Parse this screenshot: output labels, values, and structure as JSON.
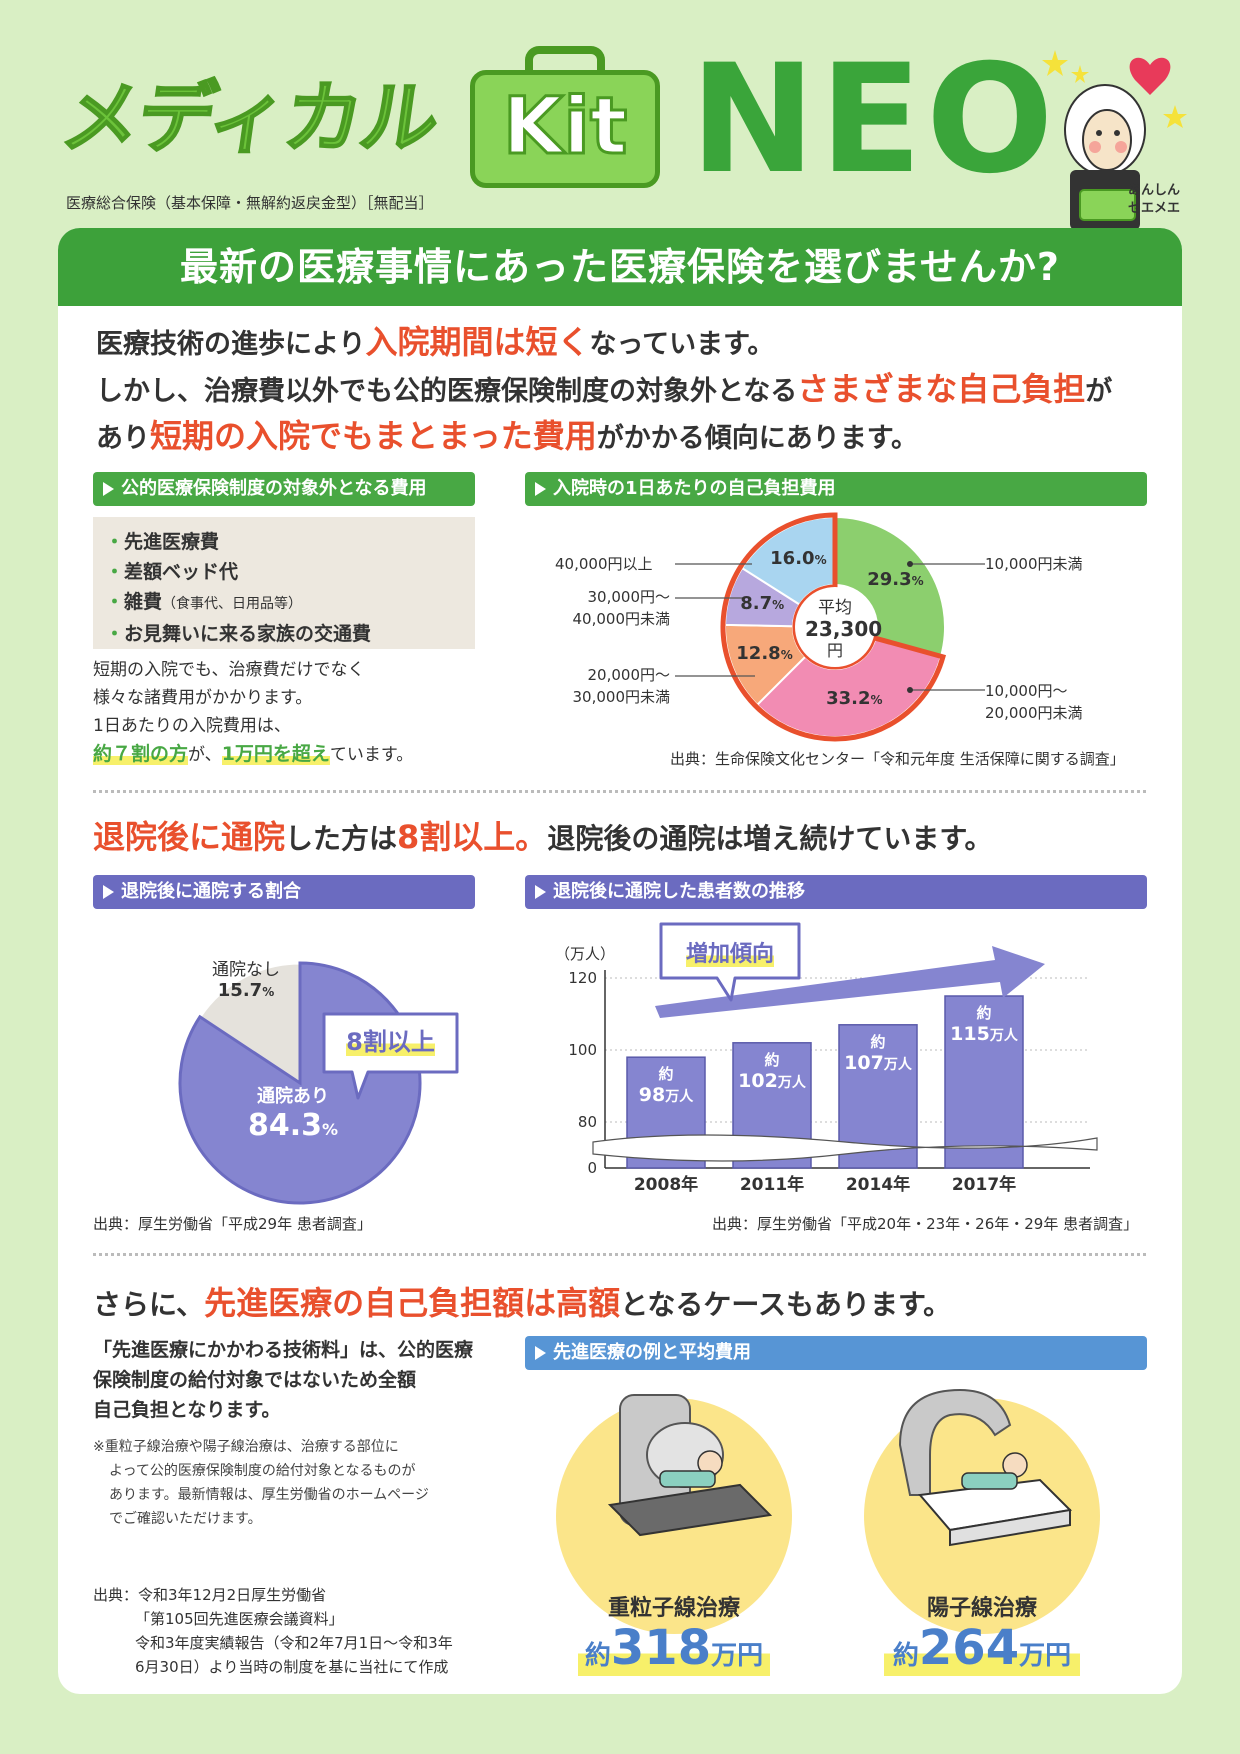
{
  "header": {
    "logo_medical": "メディカル",
    "logo_kit": "Kit",
    "logo_neo": "NEO",
    "subtitle": "医療総合保険（基本保障・無解約返戻金型）［無配当］",
    "mascot_label_1": "あんしん",
    "mascot_label_2": "セエメエ"
  },
  "banner": "最新の医療事情にあった医療保険を選びませんか?",
  "lead": {
    "l1_a": "医療技術の進歩により",
    "l1_b": "入院期間は短く",
    "l1_c": "なっています。",
    "l2_a": "しかし、治療費以外でも公的医療保険制度の対象外となる",
    "l2_b": "さまざまな自己負担",
    "l2_c": "が",
    "l3_a": "あり",
    "l3_b": "短期の入院でもまとまった費用",
    "l3_c": "がかかる傾向にあります。"
  },
  "section1": {
    "left_head": "公的医療保険制度の対象外となる費用",
    "items": [
      "先進医療費",
      "差額ベッド代",
      "雑費",
      "お見舞いに来る家族の交通費"
    ],
    "item3_note": "（食事代、日用品等）",
    "para1": "短期の入院でも、治療費だけでなく",
    "para2": "様々な諸費用がかかります。",
    "para3": "1日あたりの入院費用は、",
    "para4_a": "約７割の方",
    "para4_b": "が、",
    "para4_c": "1万円を超え",
    "para4_d": "ています。",
    "right_head": "入院時の1日あたりの自己負担費用",
    "center_1": "平均",
    "center_2": "23,300",
    "center_3": "円",
    "source": "出典：生命保険文化センター「令和元年度 生活保障に関する調査」"
  },
  "section2": {
    "h_a": "退院後に通院",
    "h_b": "した方は",
    "h_c": "8割以上。",
    "h_d": "退院後の通院は増え続けています。",
    "left_head": "退院後に通院する割合",
    "right_head": "退院後に通院した患者数の推移",
    "callout": "8割以上",
    "trend_label": "増加傾向",
    "source_left": "出典：厚生労働省「平成29年 患者調査」",
    "source_right": "出典：厚生労働省「平成20年・23年・26年・29年 患者調査」"
  },
  "section3": {
    "h_a": "さらに、",
    "h_b": "先進医療の自己負担額は高額",
    "h_c": "となるケースもあります。",
    "p1": "「先進医療にかかわる技術料」は、公的医療",
    "p2": "保険制度の給付対象ではないため全額",
    "p3": "自己負担となります。",
    "note1": "※重粒子線治療や陽子線治療は、治療する部位に",
    "note2": "よって公的医療保険制度の給付対象となるものが",
    "note3": "あります。最新情報は、厚生労働省のホームページ",
    "note4": "でご確認いただけます。",
    "src1": "出典：令和3年12月2日厚生労働省",
    "src2": "「第105回先進医療会議資料」",
    "src3": "令和3年度実績報告（令和2年7月1日〜令和3年",
    "src4": "6月30日）より当時の制度を基に当社にて作成",
    "right_head": "先進医療の例と平均費用",
    "treat1_name": "重粒子線治療",
    "treat1_pre": "約",
    "treat1_num": "318",
    "treat1_unit": "万円",
    "treat2_name": "陽子線治療",
    "treat2_pre": "約",
    "treat2_num": "264",
    "treat2_unit": "万円"
  },
  "colors": {
    "green": "#48a844",
    "purple": "#6b6bc0",
    "blue": "#5795d5",
    "red": "#e9502d"
  },
  "chart_data": [
    {
      "type": "pie",
      "title": "入院時の1日あたりの自己負担費用",
      "categories": [
        "10,000円未満",
        "10,000円〜20,000円未満",
        "20,000円〜30,000円未満",
        "30,000円〜40,000円未満",
        "40,000円以上"
      ],
      "values": [
        29.3,
        33.2,
        12.8,
        8.7,
        16.0
      ],
      "value_labels": [
        "29.3",
        "33.2",
        "12.8",
        "8.7",
        "16.0"
      ],
      "unit": "%",
      "colors": [
        "#8ccf6e",
        "#f28cb3",
        "#f7a87a",
        "#b7a8de",
        "#a9d5f0"
      ]
    },
    {
      "type": "pie",
      "title": "退院後に通院する割合",
      "categories": [
        "通院あり",
        "通院なし"
      ],
      "values": [
        84.3,
        15.7
      ],
      "value_labels": [
        "84.3",
        "15.7"
      ],
      "unit": "%",
      "colors": [
        "#8585d0",
        "#e5e2dc"
      ]
    },
    {
      "type": "bar",
      "title": "退院後に通院した患者数の推移",
      "ylabel": "（万人）",
      "categories": [
        "2008年",
        "2011年",
        "2014年",
        "2017年"
      ],
      "values": [
        98,
        102,
        107,
        115
      ],
      "bar_prefix": "約",
      "bar_unit": "万人",
      "y_ticks": [
        "0",
        "80",
        "100",
        "120"
      ],
      "axis_break": true,
      "color": "#8585d0"
    }
  ]
}
